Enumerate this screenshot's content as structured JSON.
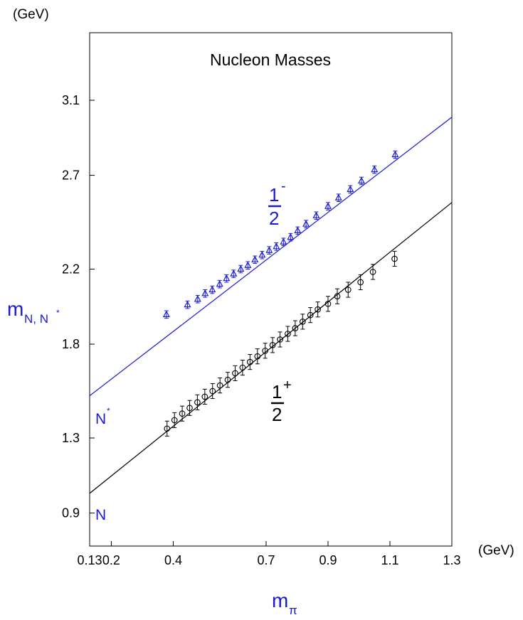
{
  "chart_data": {
    "type": "scatter",
    "title": "Nucleon Masses",
    "xlabel": "m",
    "xlabel_sub": "π",
    "x_unit": "(GeV)",
    "ylabel": "m",
    "ylabel_sub": "N, N",
    "ylabel_sup": "*",
    "y_unit": "(GeV)",
    "xlim": [
      0.13,
      1.3
    ],
    "ylim": [
      0.77,
      3.5
    ],
    "x_ticks": [
      {
        "value": 0.13,
        "label": "0.13"
      },
      {
        "value": 0.2,
        "label": "0.2"
      },
      {
        "value": 0.4,
        "label": "0.4"
      },
      {
        "value": 0.7,
        "label": "0.7"
      },
      {
        "value": 0.9,
        "label": "0.9"
      },
      {
        "value": 1.1,
        "label": "1.1"
      },
      {
        "value": 1.3,
        "label": "1.3"
      }
    ],
    "y_ticks": [
      {
        "value": 0.9,
        "label": "0.9"
      },
      {
        "value": 1.3,
        "label": "1.3"
      },
      {
        "value": 1.8,
        "label": "1.8"
      },
      {
        "value": 2.2,
        "label": "2.2"
      },
      {
        "value": 2.7,
        "label": "2.7"
      },
      {
        "value": 3.1,
        "label": "3.1"
      }
    ],
    "grid": false,
    "series": [
      {
        "label_num": "1",
        "label_den": "2",
        "label_sign": "-",
        "end_label": "N",
        "end_label_sup": "*",
        "color": "#1a1ad6",
        "marker": "triangle",
        "fit_line": {
          "x0": 0.13,
          "y0": 1.525,
          "x1": 1.3,
          "y1": 3.01
        },
        "x": [
          0.378,
          0.446,
          0.479,
          0.503,
          0.526,
          0.55,
          0.572,
          0.595,
          0.618,
          0.641,
          0.664,
          0.687,
          0.71,
          0.733,
          0.756,
          0.779,
          0.802,
          0.829,
          0.862,
          0.9,
          0.934,
          0.972,
          1.008,
          1.05,
          1.117
        ],
        "y": [
          1.958,
          2.01,
          2.04,
          2.07,
          2.09,
          2.12,
          2.15,
          2.175,
          2.2,
          2.22,
          2.25,
          2.275,
          2.3,
          2.32,
          2.345,
          2.37,
          2.405,
          2.44,
          2.485,
          2.535,
          2.58,
          2.625,
          2.67,
          2.73,
          2.81
        ],
        "err": [
          0.02,
          0.02,
          0.02,
          0.02,
          0.02,
          0.02,
          0.02,
          0.02,
          0.02,
          0.02,
          0.02,
          0.02,
          0.02,
          0.02,
          0.02,
          0.02,
          0.02,
          0.02,
          0.02,
          0.02,
          0.02,
          0.02,
          0.02,
          0.02,
          0.02
        ]
      },
      {
        "label_num": "1",
        "label_den": "2",
        "label_sign": "+",
        "end_label": "N",
        "end_label_sup": "",
        "color": "#000000",
        "marker": "circle",
        "fit_line": {
          "x0": 0.13,
          "y0": 1.005,
          "x1": 1.3,
          "y1": 2.555
        },
        "x": [
          0.38,
          0.404,
          0.429,
          0.453,
          0.478,
          0.502,
          0.527,
          0.551,
          0.576,
          0.6,
          0.624,
          0.648,
          0.672,
          0.697,
          0.721,
          0.745,
          0.77,
          0.794,
          0.818,
          0.843,
          0.867,
          0.9,
          0.93,
          0.965,
          1.005,
          1.045,
          1.115
        ],
        "y": [
          1.35,
          1.395,
          1.43,
          1.46,
          1.49,
          1.52,
          1.55,
          1.58,
          1.61,
          1.645,
          1.675,
          1.705,
          1.735,
          1.765,
          1.795,
          1.825,
          1.855,
          1.885,
          1.92,
          1.955,
          1.985,
          2.015,
          2.055,
          2.09,
          2.13,
          2.185,
          2.255
        ],
        "err": [
          0.04,
          0.04,
          0.04,
          0.04,
          0.04,
          0.04,
          0.04,
          0.04,
          0.04,
          0.04,
          0.04,
          0.04,
          0.04,
          0.04,
          0.04,
          0.04,
          0.04,
          0.04,
          0.04,
          0.04,
          0.04,
          0.04,
          0.04,
          0.04,
          0.04,
          0.04,
          0.04
        ]
      }
    ]
  }
}
